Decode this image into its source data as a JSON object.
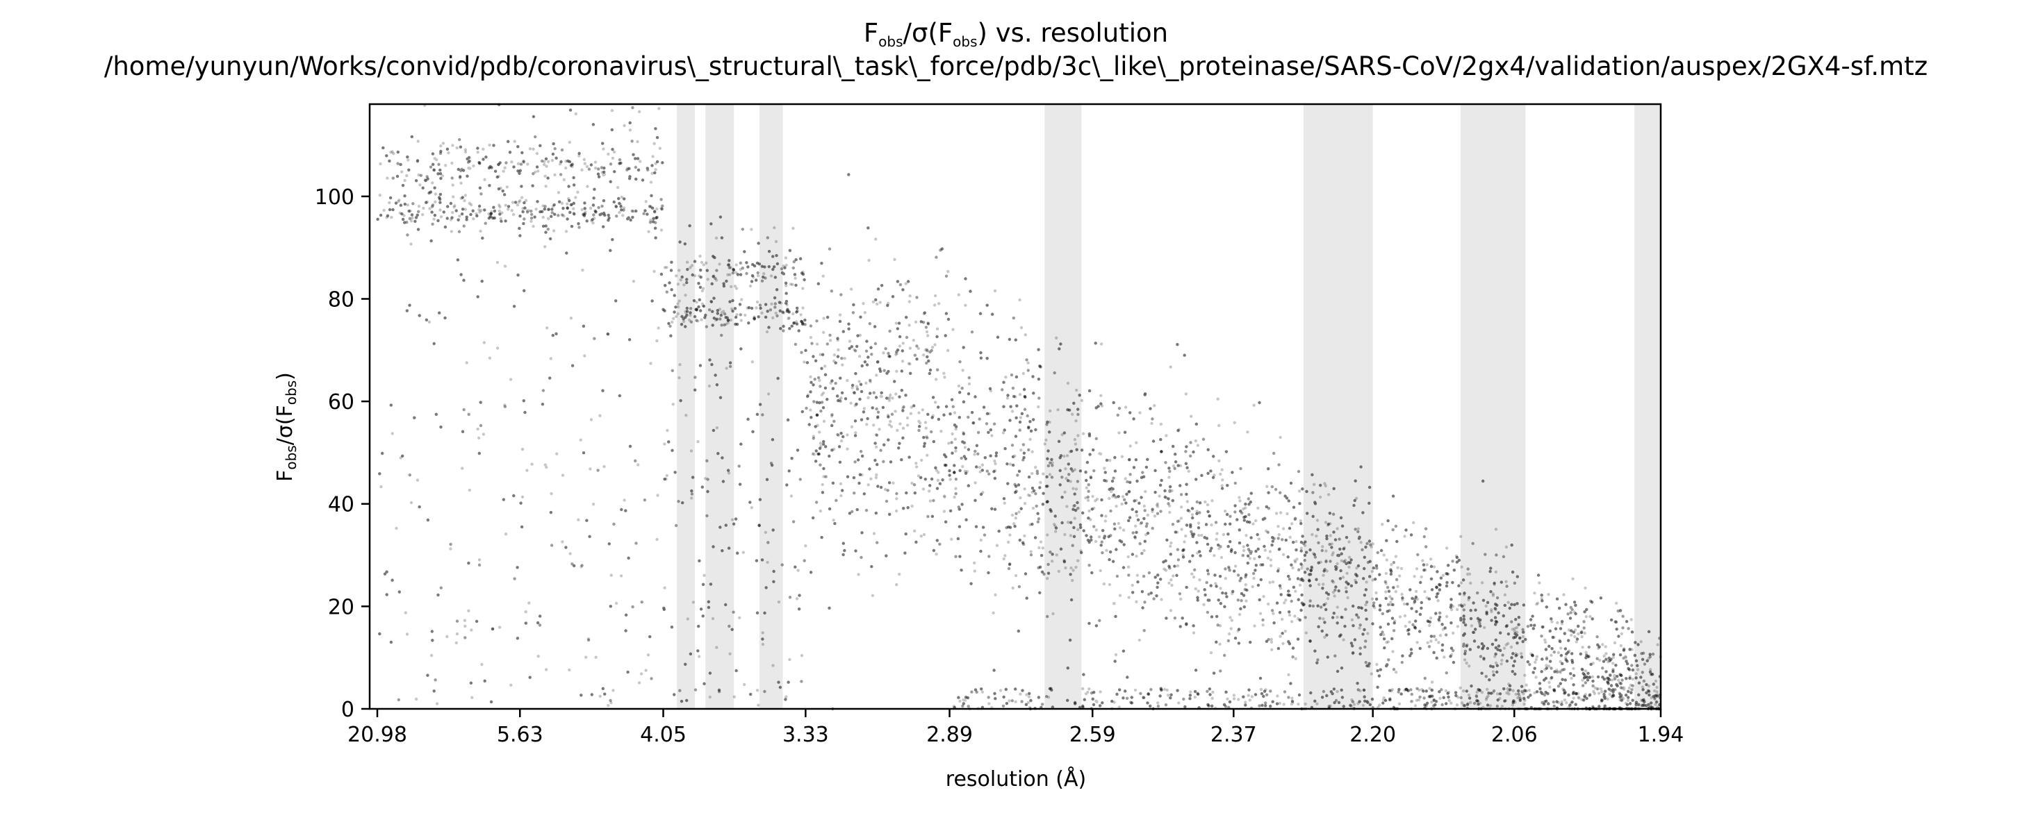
{
  "chart_data": {
    "type": "scatter",
    "title_line1": {
      "main": "F",
      "sub1": "obs",
      "mid": "/σ(F",
      "sub2": "obs",
      "tail": ") vs. resolution"
    },
    "title_line2": "/home/yunyun/Works/convid/pdb/coronavirus\\_structural\\_task\\_force/pdb/3c\\_like\\_proteinase/SARS-CoV/2gx4/validation/auspex/2GX4-sf.mtz",
    "xlabel": "resolution (Å)",
    "ylabel": {
      "main": "F",
      "sub1": "obs",
      "mid": "/σ(F",
      "sub2": "obs",
      "tail": ")"
    },
    "x_scale": "1/d^2 (reciprocal resolution squared)",
    "x_tick_labels": [
      "20.98",
      "5.63",
      "4.05",
      "3.33",
      "2.89",
      "2.59",
      "2.37",
      "2.20",
      "2.06",
      "1.94"
    ],
    "y_ticks": [
      0,
      20,
      40,
      60,
      80,
      100
    ],
    "ylim": [
      0,
      118
    ],
    "xlim_resolution": [
      20.98,
      1.94
    ],
    "ice_ring_bands_resolution": [
      [
        3.96,
        3.85
      ],
      [
        3.79,
        3.64
      ],
      [
        3.52,
        3.42
      ],
      [
        2.68,
        2.61
      ],
      [
        2.28,
        2.2
      ],
      [
        2.11,
        2.05
      ],
      [
        1.96,
        1.94
      ]
    ],
    "band_color": "#e9e9e9",
    "point_color": "#000000",
    "point_alpha": 0.22,
    "description_trend": [
      {
        "res_range": [
          20.98,
          4.05
        ],
        "clusters": [
          97,
          107
        ],
        "spread": [
          0,
          118
        ]
      },
      {
        "res_range": [
          4.05,
          3.33
        ],
        "clusters": [
          77,
          86
        ],
        "spread": [
          0,
          96
        ]
      },
      {
        "res_range": [
          3.33,
          2.89
        ],
        "center": 60,
        "spread": [
          0,
          78
        ]
      },
      {
        "res_range": [
          2.89,
          1.94
        ],
        "trend_start": 50,
        "trend_end": 3
      }
    ]
  }
}
